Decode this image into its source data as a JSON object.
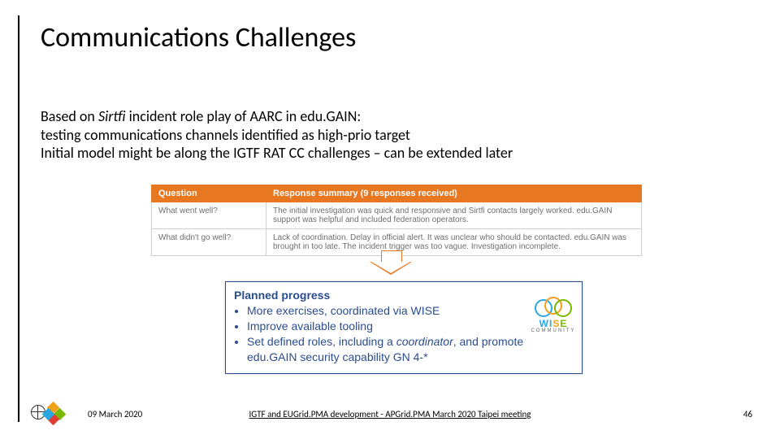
{
  "slide": {
    "title": "Communications Challenges",
    "intro": {
      "line1_pre": "Based on ",
      "line1_italic": "Sirtfi",
      "line1_post": " incident role play of AARC in edu.GAIN:",
      "line2": "testing communications channels identified as high-prio target",
      "line3": "Initial model might be along the IGTF RAT CC challenges – can be extended later"
    },
    "table": {
      "header_bg": "#e87722",
      "headers": {
        "q": "Question",
        "a": "Response summary (9 responses received)"
      },
      "rows": [
        {
          "q": "What went well?",
          "a": "The initial investigation was quick and responsive and Sirtfi contacts largely worked. edu.GAIN support was helpful and included federation operators."
        },
        {
          "q": "What didn't go well?",
          "a": "Lack of coordination. Delay in official alert. It was unclear who should be contacted. edu.GAIN was brought in too late. The incident trigger was too vague. Investigation incomplete."
        }
      ]
    },
    "arrow_color": "#e87722",
    "planned": {
      "border_color": "#2a4d8f",
      "text_color": "#2a4d8f",
      "title": "Planned progress",
      "items": [
        {
          "text": "More exercises, coordinated via WISE"
        },
        {
          "text": "Improve available tooling"
        },
        {
          "pre": "Set defined roles, including a ",
          "ital": "coordinator",
          "post": ", and promote edu.GAIN security capability GN 4-*"
        }
      ],
      "logo": {
        "name": "WISE",
        "sub": "COMMUNITY"
      }
    },
    "footer": {
      "date": "09 March 2020",
      "center": "IGTF and EUGrid.PMA development - APGrid.PMA March 2020 Taipei meeting",
      "page": "46"
    }
  }
}
